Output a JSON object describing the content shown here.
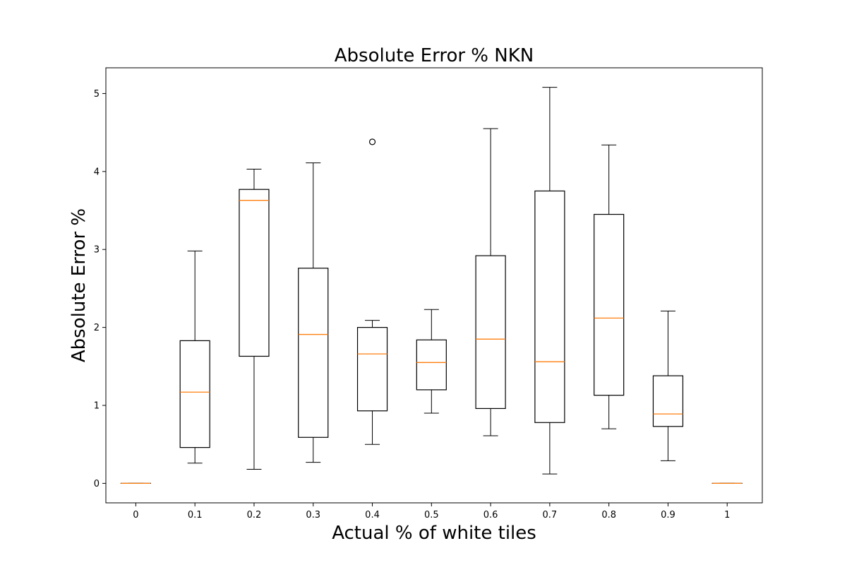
{
  "chart_data": {
    "type": "box",
    "title": "Absolute Error % NKN",
    "xlabel": "Actual % of white tiles",
    "ylabel": "Absolute Error %",
    "categories": [
      "0",
      "0.1",
      "0.2",
      "0.3",
      "0.4",
      "0.5",
      "0.6",
      "0.7",
      "0.8",
      "0.9",
      "1"
    ],
    "y_ticks": [
      "0",
      "1",
      "2",
      "3",
      "4",
      "5"
    ],
    "ylim": [
      -0.25,
      5.33
    ],
    "grid": false,
    "boxes": [
      {
        "category": "0",
        "whisker_low": 0.0,
        "q1": 0.0,
        "median": 0.0,
        "q3": 0.0,
        "whisker_high": 0.0,
        "outliers": []
      },
      {
        "category": "0.1",
        "whisker_low": 0.26,
        "q1": 0.46,
        "median": 1.17,
        "q3": 1.83,
        "whisker_high": 2.98,
        "outliers": []
      },
      {
        "category": "0.2",
        "whisker_low": 0.18,
        "q1": 1.63,
        "median": 3.63,
        "q3": 3.77,
        "whisker_high": 4.03,
        "outliers": []
      },
      {
        "category": "0.3",
        "whisker_low": 0.27,
        "q1": 0.59,
        "median": 1.91,
        "q3": 2.76,
        "whisker_high": 4.11,
        "outliers": []
      },
      {
        "category": "0.4",
        "whisker_low": 0.5,
        "q1": 0.93,
        "median": 1.66,
        "q3": 2.0,
        "whisker_high": 2.09,
        "outliers": [
          4.38
        ]
      },
      {
        "category": "0.5",
        "whisker_low": 0.9,
        "q1": 1.2,
        "median": 1.55,
        "q3": 1.84,
        "whisker_high": 2.23,
        "outliers": []
      },
      {
        "category": "0.6",
        "whisker_low": 0.61,
        "q1": 0.96,
        "median": 1.85,
        "q3": 2.92,
        "whisker_high": 4.55,
        "outliers": []
      },
      {
        "category": "0.7",
        "whisker_low": 0.12,
        "q1": 0.78,
        "median": 1.56,
        "q3": 3.75,
        "whisker_high": 5.08,
        "outliers": []
      },
      {
        "category": "0.8",
        "whisker_low": 0.7,
        "q1": 1.13,
        "median": 2.12,
        "q3": 3.45,
        "whisker_high": 4.34,
        "outliers": []
      },
      {
        "category": "0.9",
        "whisker_low": 0.29,
        "q1": 0.73,
        "median": 0.89,
        "q3": 1.38,
        "whisker_high": 2.21,
        "outliers": []
      },
      {
        "category": "1",
        "whisker_low": 0.0,
        "q1": 0.0,
        "median": 0.0,
        "q3": 0.0,
        "whisker_high": 0.0,
        "outliers": []
      }
    ],
    "colors": {
      "box": "#000000",
      "median": "#ff7f0e",
      "whisker": "#000000",
      "outlier": "#000000"
    }
  }
}
